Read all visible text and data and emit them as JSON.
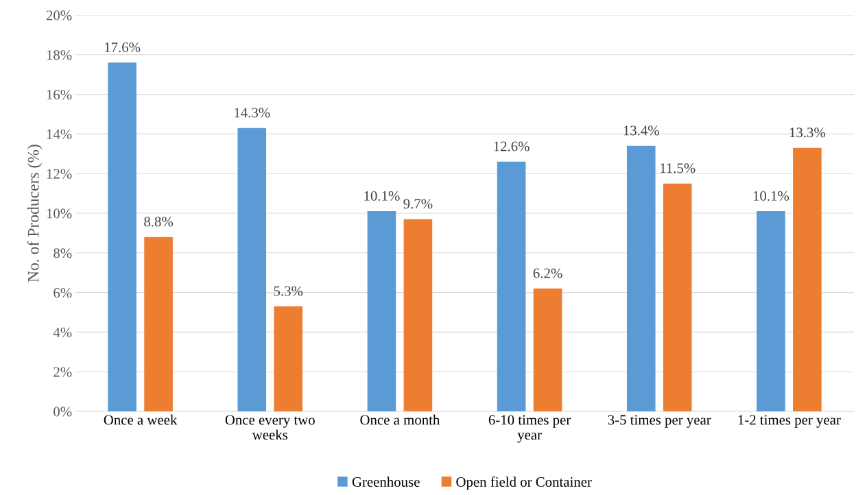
{
  "chart_data": {
    "type": "bar",
    "ylabel": "No. of Producers (%)",
    "categories": [
      "Once a week",
      "Once every two\nweeks",
      "Once a month",
      "6-10 times per\nyear",
      "3-5 times per year",
      "1-2 times per year"
    ],
    "series": [
      {
        "name": "Greenhouse",
        "color": "#5b9bd5",
        "values": [
          17.6,
          14.3,
          10.1,
          12.6,
          13.4,
          10.1
        ],
        "value_labels": [
          "17.6%",
          "14.3%",
          "10.1%",
          "12.6%",
          "13.4%",
          "10.1%"
        ]
      },
      {
        "name": "Open field or Container",
        "color": "#ed7d31",
        "values": [
          8.8,
          5.3,
          9.7,
          6.2,
          11.5,
          13.3
        ],
        "value_labels": [
          "8.8%",
          "5.3%",
          "9.7%",
          "6.2%",
          "11.5%",
          "13.3%"
        ]
      }
    ],
    "ylim": [
      0,
      20
    ],
    "yticks": [
      {
        "value": 0,
        "label": "0%"
      },
      {
        "value": 2,
        "label": "2%"
      },
      {
        "value": 4,
        "label": "4%"
      },
      {
        "value": 6,
        "label": "6%"
      },
      {
        "value": 8,
        "label": "8%"
      },
      {
        "value": 10,
        "label": "10%"
      },
      {
        "value": 12,
        "label": "12%"
      },
      {
        "value": 14,
        "label": "14%"
      },
      {
        "value": 16,
        "label": "16%"
      },
      {
        "value": 18,
        "label": "18%"
      },
      {
        "value": 20,
        "label": "20%"
      }
    ],
    "grid": "y",
    "legend": "bottom"
  }
}
